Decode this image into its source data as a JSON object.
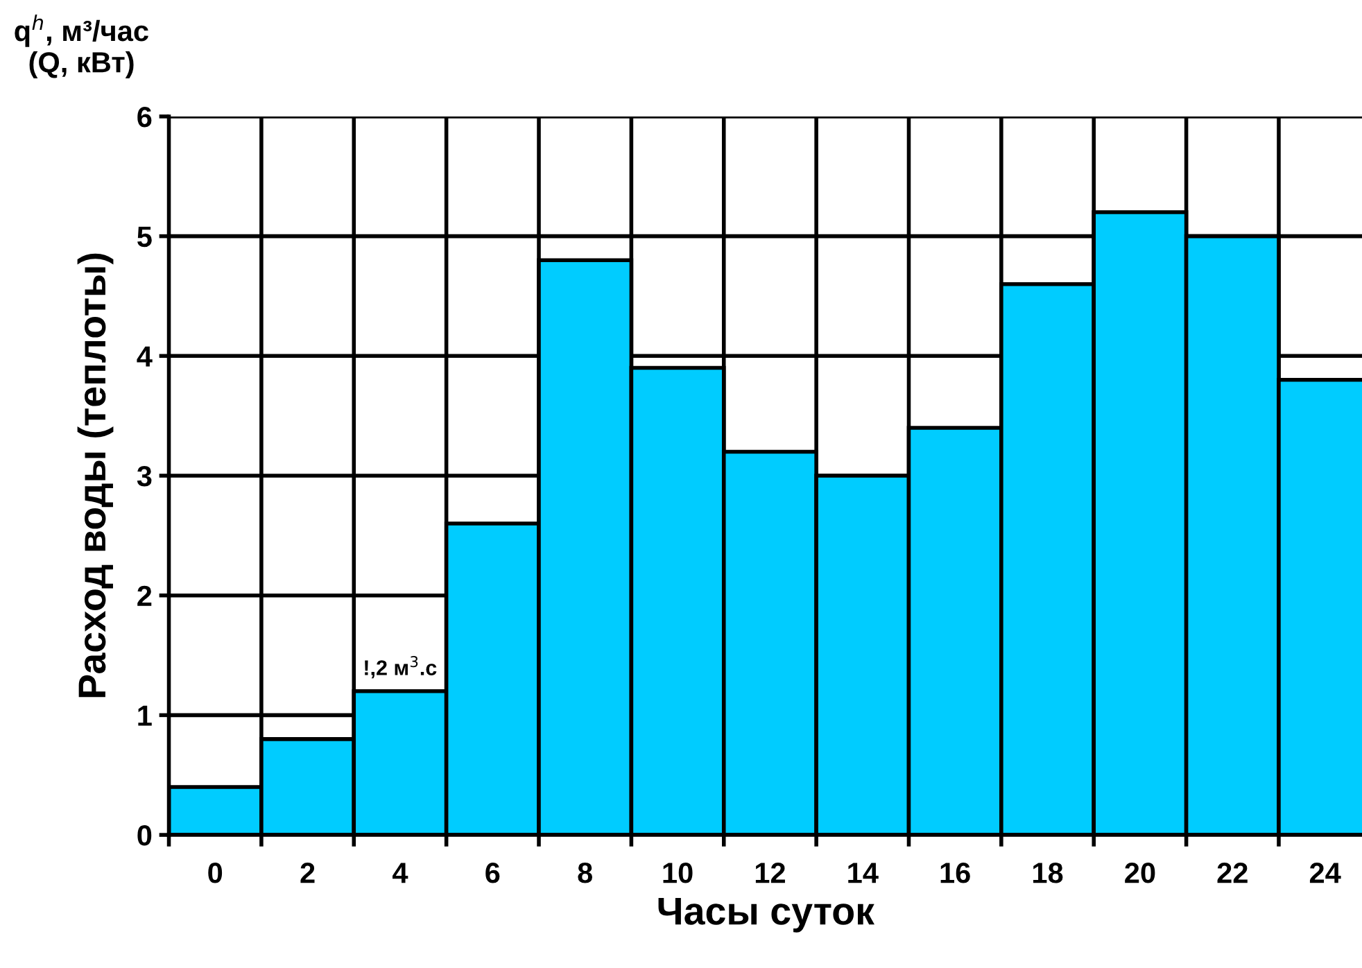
{
  "chart_data": {
    "type": "bar",
    "title": "q$^{h}$, м³/час\n(Q, кВт)",
    "xlabel": "Часы суток",
    "ylabel": "Расход воды (теплоты)",
    "categories": [
      "0",
      "2",
      "4",
      "6",
      "8",
      "10",
      "12",
      "14",
      "16",
      "18",
      "20",
      "22",
      "24"
    ],
    "values": [
      0.4,
      0.8,
      1.2,
      2.6,
      4.8,
      3.9,
      3.2,
      3.0,
      3.4,
      4.6,
      5.2,
      5.0,
      3.8
    ],
    "color": "#00ccff",
    "ylim": [
      0,
      6
    ],
    "yticks": [
      0,
      1,
      2,
      3,
      4,
      5,
      6
    ],
    "grid": true,
    "annotations": [
      {
        "text": "!,2 м$^{3}$.с",
        "x": "4",
        "y": 1.2
      }
    ]
  }
}
